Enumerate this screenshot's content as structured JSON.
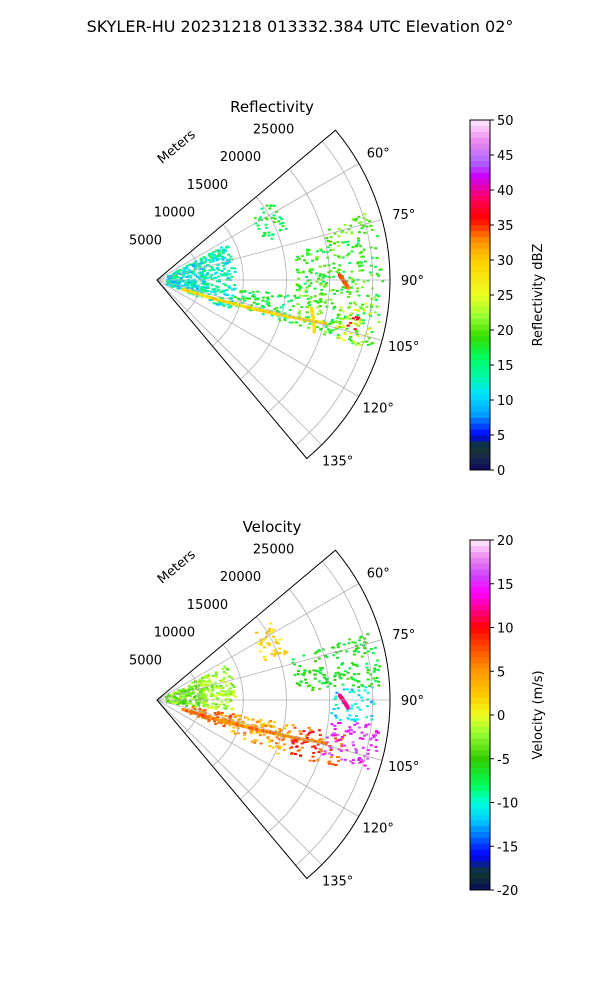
{
  "figure": {
    "suptitle": "SKYLER-HU  20231218  013332.384 UTC Elevation 02°"
  },
  "chart_data": [
    {
      "type": "heatmap",
      "subtype": "polar-sector",
      "title": "Reflectivity",
      "range_label": "Meters",
      "range_ticks": [
        "5000",
        "10000",
        "15000",
        "20000",
        "25000"
      ],
      "range_tick_values": [
        5000,
        10000,
        15000,
        20000,
        25000
      ],
      "range_max": 27000,
      "azimuth_ticks": [
        "60°",
        "75°",
        "90°",
        "105°",
        "120°",
        "135°"
      ],
      "azimuth_tick_values": [
        60,
        75,
        90,
        105,
        120,
        135
      ],
      "azimuth_range": [
        50,
        140
      ],
      "grid": true,
      "colorbar": {
        "label": "Reflectivity dBZ",
        "min": 0,
        "max": 50,
        "ticks": [
          "0",
          "5",
          "10",
          "15",
          "20",
          "25",
          "30",
          "35",
          "40",
          "45",
          "50"
        ],
        "tick_values": [
          0,
          5,
          10,
          15,
          20,
          25,
          30,
          35,
          40,
          45,
          50
        ],
        "stops": [
          [
            0,
            "#0b0b5a"
          ],
          [
            2,
            "#1b2a4a"
          ],
          [
            3.5,
            "#103a2a"
          ],
          [
            5,
            "#0000ff"
          ],
          [
            8,
            "#00a0ff"
          ],
          [
            11,
            "#00e5ff"
          ],
          [
            13,
            "#00f5b0"
          ],
          [
            16,
            "#00ff66"
          ],
          [
            19,
            "#33dd00"
          ],
          [
            22,
            "#99ff33"
          ],
          [
            25,
            "#eeff22"
          ],
          [
            30,
            "#ffd000"
          ],
          [
            33,
            "#ff8800"
          ],
          [
            36,
            "#ff0000"
          ],
          [
            39,
            "#ff0066"
          ],
          [
            42,
            "#cc00ff"
          ],
          [
            44,
            "#aa66ff"
          ],
          [
            47,
            "#ee88ee"
          ],
          [
            50,
            "#ffeeff"
          ]
        ]
      },
      "echo_regions": [
        {
          "range": [
            1000,
            5500
          ],
          "azimuth": [
            62,
            112
          ],
          "value": 12,
          "spread": 4
        },
        {
          "range": [
            5000,
            9000
          ],
          "azimuth": [
            62,
            112
          ],
          "value": 13,
          "spread": 4
        },
        {
          "range": [
            9000,
            16000
          ],
          "azimuth": [
            96,
            108
          ],
          "value": 17,
          "spread": 3
        },
        {
          "range": [
            16000,
            26000
          ],
          "azimuth": [
            78,
            108
          ],
          "value": 19,
          "spread": 3
        },
        {
          "range": [
            20000,
            25500
          ],
          "azimuth": [
            72,
            78
          ],
          "value": 20,
          "spread": 2
        },
        {
          "range": [
            21000,
            25000
          ],
          "azimuth": [
            96,
            108
          ],
          "value": 24,
          "spread": 4
        },
        {
          "range": [
            13000,
            16000
          ],
          "azimuth": [
            55,
            70
          ],
          "value": 17,
          "spread": 3
        },
        {
          "range": [
            22500,
            24500
          ],
          "azimuth": [
            100,
            104
          ],
          "value": 36,
          "spread": 2
        }
      ],
      "echo_lines": [
        {
          "azimuth": [
            108,
            104
          ],
          "range": [
            3000,
            20000
          ],
          "value": 29
        },
        {
          "azimuth": [
            100,
            108
          ],
          "range": [
            18000,
            19000
          ],
          "value": 28
        },
        {
          "azimuth": [
            88,
            92
          ],
          "range": [
            21000,
            22000
          ],
          "value": 34
        }
      ]
    },
    {
      "type": "heatmap",
      "subtype": "polar-sector",
      "title": "Velocity",
      "range_label": "Meters",
      "range_ticks": [
        "5000",
        "10000",
        "15000",
        "20000",
        "25000"
      ],
      "range_tick_values": [
        5000,
        10000,
        15000,
        20000,
        25000
      ],
      "range_max": 27000,
      "azimuth_ticks": [
        "60°",
        "75°",
        "90°",
        "105°",
        "120°",
        "135°"
      ],
      "azimuth_tick_values": [
        60,
        75,
        90,
        105,
        120,
        135
      ],
      "azimuth_range": [
        50,
        140
      ],
      "grid": true,
      "colorbar": {
        "label": "Velocity (m/s)",
        "min": -20,
        "max": 20,
        "ticks": [
          "-20",
          "-15",
          "-10",
          "-5",
          "0",
          "5",
          "10",
          "15",
          "20"
        ],
        "tick_values": [
          -20,
          -15,
          -10,
          -5,
          0,
          5,
          10,
          15,
          20
        ],
        "stops": [
          [
            -20,
            "#0b0b5a"
          ],
          [
            -18,
            "#103a2a"
          ],
          [
            -16,
            "#0000ff"
          ],
          [
            -14,
            "#0066ff"
          ],
          [
            -12,
            "#00ccff"
          ],
          [
            -10,
            "#00ffdd"
          ],
          [
            -8,
            "#00ff55"
          ],
          [
            -5,
            "#33cc00"
          ],
          [
            -2,
            "#99ff33"
          ],
          [
            0,
            "#eeff22"
          ],
          [
            2,
            "#ffd000"
          ],
          [
            5,
            "#ff9900"
          ],
          [
            8,
            "#ff4400"
          ],
          [
            10,
            "#ff0000"
          ],
          [
            12,
            "#ff0088"
          ],
          [
            14,
            "#ff00ff"
          ],
          [
            16,
            "#cc44ff"
          ],
          [
            18,
            "#ee88ee"
          ],
          [
            20,
            "#ffeeff"
          ]
        ]
      },
      "echo_regions": [
        {
          "range": [
            1000,
            5500
          ],
          "azimuth": [
            62,
            100
          ],
          "value": -3,
          "spread": 2
        },
        {
          "range": [
            5000,
            9000
          ],
          "azimuth": [
            62,
            98
          ],
          "value": -2,
          "spread": 2
        },
        {
          "range": [
            4000,
            9000
          ],
          "azimuth": [
            100,
            112
          ],
          "value": 6,
          "spread": 3
        },
        {
          "range": [
            9000,
            16000
          ],
          "azimuth": [
            100,
            114
          ],
          "value": 4,
          "spread": 3
        },
        {
          "range": [
            16000,
            22000
          ],
          "azimuth": [
            100,
            112
          ],
          "value": 8,
          "spread": 3
        },
        {
          "range": [
            20000,
            26000
          ],
          "azimuth": [
            96,
            108
          ],
          "value": 15,
          "spread": 2
        },
        {
          "range": [
            20000,
            25000
          ],
          "azimuth": [
            86,
            96
          ],
          "value": -11,
          "spread": 2
        },
        {
          "range": [
            16000,
            26000
          ],
          "azimuth": [
            72,
            86
          ],
          "value": -6,
          "spread": 2
        },
        {
          "range": [
            13000,
            16000
          ],
          "azimuth": [
            55,
            70
          ],
          "value": 2,
          "spread": 2
        }
      ],
      "echo_lines": [
        {
          "azimuth": [
            108,
            104
          ],
          "range": [
            3000,
            20000
          ],
          "value": 6
        },
        {
          "azimuth": [
            88,
            92
          ],
          "range": [
            21000,
            22000
          ],
          "value": 12
        }
      ]
    }
  ]
}
